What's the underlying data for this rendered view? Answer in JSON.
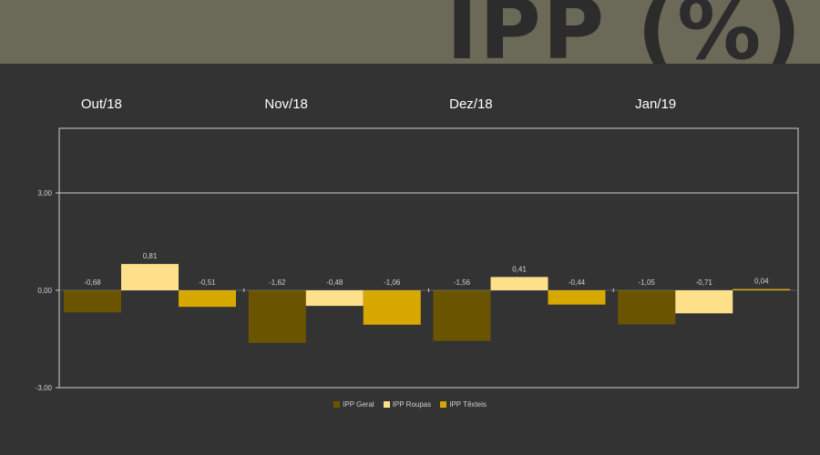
{
  "page": {
    "title": "IPP (%)"
  },
  "colors": {
    "background": "#6b6a58",
    "panel": "#333333",
    "series": [
      "#6b5400",
      "#ffe08a",
      "#d6a800"
    ]
  },
  "chart_data": {
    "type": "bar",
    "categories": [
      "Out/18",
      "Nov/18",
      "Dez/18",
      "Jan/19"
    ],
    "series": [
      {
        "name": "IPP Geral",
        "values": [
          -0.68,
          -1.62,
          -1.56,
          -1.05
        ],
        "labels": [
          "-0,68",
          "-1,62",
          "-1,56",
          "-1,05"
        ]
      },
      {
        "name": "IPP Roupas",
        "values": [
          0.81,
          -0.48,
          0.41,
          -0.71
        ],
        "labels": [
          "0,81",
          "-0,48",
          "0,41",
          "-0,71"
        ]
      },
      {
        "name": "IPP Têxteis",
        "values": [
          -0.51,
          -1.06,
          -0.44,
          0.04
        ],
        "labels": [
          "-0,51",
          "-1,06",
          "-0,44",
          "0,04"
        ]
      }
    ],
    "ylim": [
      -3,
      3
    ],
    "yticks": [
      3,
      0,
      -3
    ],
    "ytick_labels": [
      "3,00",
      "0,00",
      "-3,00"
    ],
    "legend": "bottom",
    "grid": false
  }
}
